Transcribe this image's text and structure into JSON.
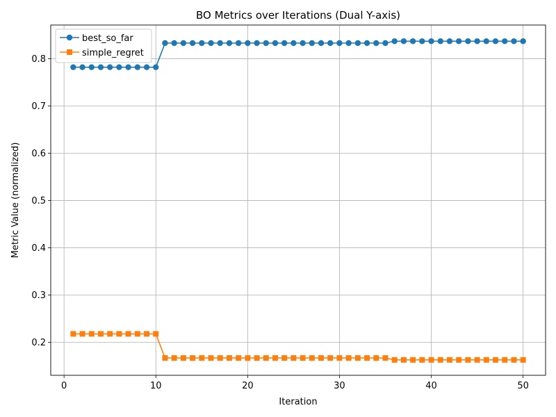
{
  "chart_data": {
    "type": "line",
    "title": "BO Metrics over Iterations (Dual Y-axis)",
    "xlabel": "Iteration",
    "ylabel": "Metric Value (normalized)",
    "xlim": [
      -1.45,
      52.45
    ],
    "ylim": [
      0.1304,
      0.8712
    ],
    "xticks": [
      0,
      10,
      20,
      30,
      40,
      50
    ],
    "xtick_labels": [
      "0",
      "10",
      "20",
      "30",
      "40",
      "50"
    ],
    "yticks": [
      0.2,
      0.3,
      0.4,
      0.5,
      0.6,
      0.7,
      0.8
    ],
    "ytick_labels": [
      "0.2",
      "0.3",
      "0.4",
      "0.5",
      "0.6",
      "0.7",
      "0.8"
    ],
    "grid": true,
    "legend_position": "top-left",
    "x": [
      1,
      2,
      3,
      4,
      5,
      6,
      7,
      8,
      9,
      10,
      11,
      12,
      13,
      14,
      15,
      16,
      17,
      18,
      19,
      20,
      21,
      22,
      23,
      24,
      25,
      26,
      27,
      28,
      29,
      30,
      31,
      32,
      33,
      34,
      35,
      36,
      37,
      38,
      39,
      40,
      41,
      42,
      43,
      44,
      45,
      46,
      47,
      48,
      49,
      50
    ],
    "series": [
      {
        "name": "best_so_far",
        "color": "#1f77b4",
        "marker": "circle",
        "values": [
          0.782,
          0.782,
          0.782,
          0.782,
          0.782,
          0.782,
          0.782,
          0.782,
          0.782,
          0.782,
          0.833,
          0.833,
          0.833,
          0.833,
          0.833,
          0.833,
          0.833,
          0.833,
          0.833,
          0.833,
          0.833,
          0.833,
          0.833,
          0.833,
          0.833,
          0.833,
          0.833,
          0.833,
          0.833,
          0.833,
          0.833,
          0.833,
          0.833,
          0.833,
          0.833,
          0.837,
          0.837,
          0.837,
          0.837,
          0.837,
          0.837,
          0.837,
          0.837,
          0.837,
          0.837,
          0.837,
          0.837,
          0.837,
          0.837,
          0.837
        ]
      },
      {
        "name": "simple_regret",
        "color": "#ff7f0e",
        "marker": "square",
        "values": [
          0.218,
          0.218,
          0.218,
          0.218,
          0.218,
          0.218,
          0.218,
          0.218,
          0.218,
          0.218,
          0.167,
          0.167,
          0.167,
          0.167,
          0.167,
          0.167,
          0.167,
          0.167,
          0.167,
          0.167,
          0.167,
          0.167,
          0.167,
          0.167,
          0.167,
          0.167,
          0.167,
          0.167,
          0.167,
          0.167,
          0.167,
          0.167,
          0.167,
          0.167,
          0.167,
          0.163,
          0.163,
          0.163,
          0.163,
          0.163,
          0.163,
          0.163,
          0.163,
          0.163,
          0.163,
          0.163,
          0.163,
          0.163,
          0.163,
          0.163
        ]
      }
    ]
  }
}
